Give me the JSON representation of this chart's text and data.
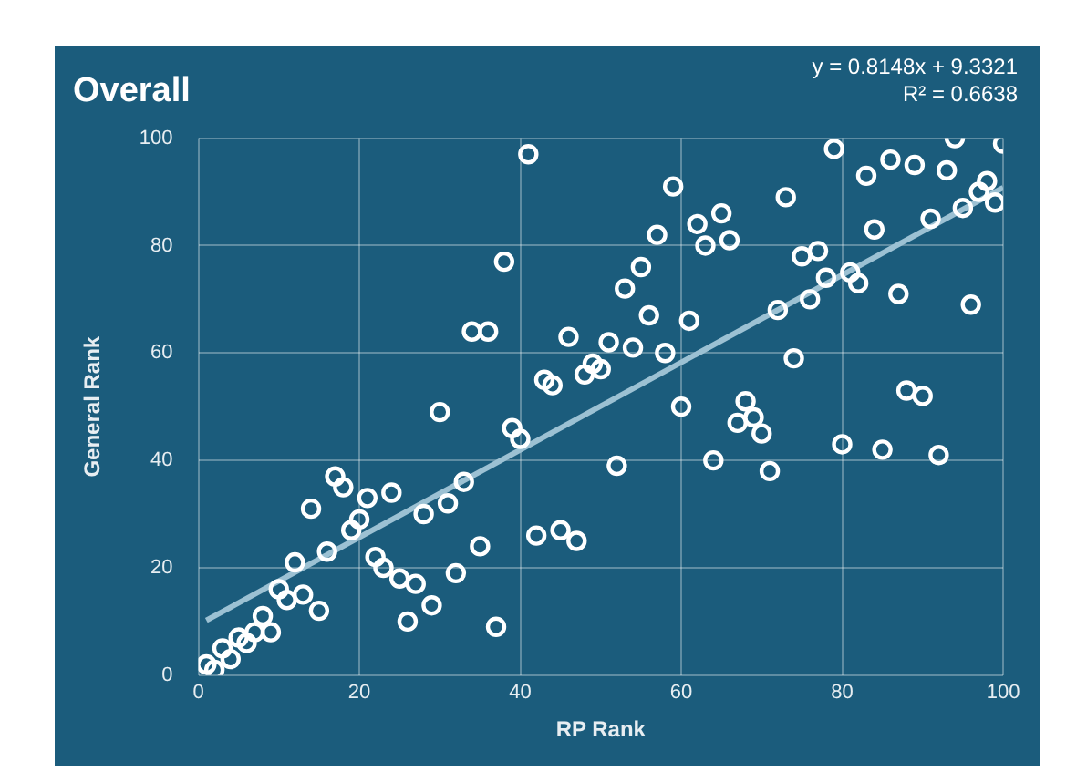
{
  "chart_data": {
    "type": "scatter",
    "title": "Overall",
    "xlabel": "RP Rank",
    "ylabel": "General Rank",
    "annotations": [
      "y = 0.8148x + 9.3321",
      "R² = 0.6638"
    ],
    "xlim": [
      0,
      100
    ],
    "xticks": [
      0,
      20,
      40,
      60,
      80,
      100
    ],
    "ylim": [
      0,
      100
    ],
    "yticks": [
      0,
      20,
      40,
      60,
      80,
      100
    ],
    "grid": true,
    "legend": false,
    "series": [
      {
        "color": "#ffffff",
        "marker": "circle",
        "x": [
          1,
          2,
          3,
          4,
          5,
          6,
          7,
          8,
          9,
          10,
          11,
          12,
          13,
          14,
          15,
          16,
          17,
          18,
          19,
          20,
          21,
          22,
          23,
          24,
          25,
          26,
          27,
          28,
          29,
          30,
          31,
          32,
          33,
          34,
          35,
          36,
          37,
          38,
          39,
          40,
          41,
          42,
          43,
          44,
          45,
          46,
          47,
          48,
          49,
          50,
          51,
          52,
          53,
          54,
          55,
          56,
          57,
          58,
          59,
          60,
          61,
          62,
          63,
          64,
          65,
          66,
          67,
          68,
          69,
          70,
          71,
          72,
          73,
          74,
          75,
          76,
          77,
          78,
          79,
          80,
          81,
          82,
          83,
          84,
          85,
          86,
          87,
          88,
          89,
          90,
          91,
          92,
          93,
          94,
          95,
          96,
          97,
          98,
          99,
          100
        ],
        "values": [
          2,
          1,
          5,
          3,
          7,
          6,
          8,
          11,
          8,
          16,
          14,
          21,
          15,
          31,
          12,
          23,
          37,
          35,
          27,
          29,
          33,
          22,
          20,
          34,
          18,
          10,
          17,
          30,
          13,
          49,
          32,
          19,
          36,
          64,
          24,
          64,
          9,
          77,
          46,
          44,
          97,
          26,
          55,
          54,
          27,
          63,
          25,
          56,
          58,
          57,
          62,
          39,
          72,
          61,
          76,
          67,
          82,
          60,
          91,
          50,
          66,
          84,
          80,
          40,
          86,
          81,
          47,
          51,
          48,
          45,
          38,
          68,
          89,
          59,
          78,
          70,
          79,
          74,
          98,
          43,
          75,
          73,
          93,
          83,
          42,
          96,
          71,
          53,
          95,
          52,
          85,
          41,
          94,
          100,
          87,
          69,
          90,
          92,
          88,
          99
        ]
      },
      {
        "type": "line",
        "color": "#9cc1d3",
        "marker": "none",
        "x": [
          1,
          100
        ],
        "values": [
          10.2,
          90.8
        ]
      }
    ]
  }
}
